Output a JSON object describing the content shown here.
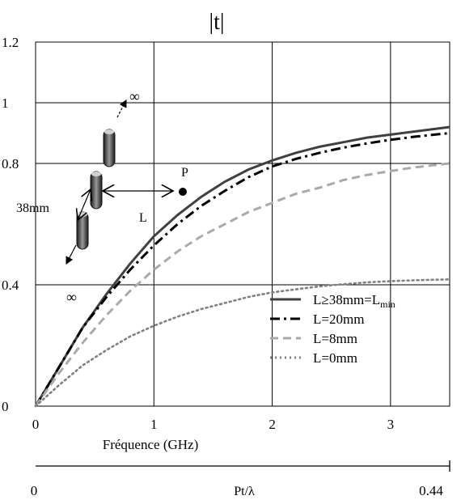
{
  "chart_data": {
    "type": "line",
    "title": "|t|",
    "xlabel": "Fréquence (GHz)",
    "ylabel": "",
    "xlim": [
      0,
      3.5
    ],
    "ylim": [
      0,
      1.2
    ],
    "x_ticks": [
      "0",
      "1",
      "2",
      "3"
    ],
    "y_ticks": [
      "0",
      "0.4",
      "0.8",
      "1",
      "1.2"
    ],
    "grid": true,
    "legend_position": "bottom-right",
    "series": [
      {
        "name": "L≥38mm=L",
        "name_sub": "min",
        "color": "#404040",
        "style": "solid",
        "x": [
          0,
          0.2,
          0.4,
          0.6,
          0.8,
          1.0,
          1.2,
          1.4,
          1.6,
          1.8,
          2.0,
          2.2,
          2.4,
          2.6,
          2.8,
          3.0,
          3.2,
          3.5
        ],
        "y": [
          0,
          0.13,
          0.26,
          0.37,
          0.47,
          0.56,
          0.63,
          0.69,
          0.74,
          0.78,
          0.81,
          0.835,
          0.855,
          0.87,
          0.885,
          0.895,
          0.905,
          0.92
        ]
      },
      {
        "name": "L=20mm",
        "color": "#000000",
        "style": "dashdot",
        "x": [
          0,
          0.2,
          0.4,
          0.6,
          0.8,
          1.0,
          1.2,
          1.4,
          1.6,
          1.8,
          2.0,
          2.2,
          2.4,
          2.6,
          2.8,
          3.0,
          3.2,
          3.5
        ],
        "y": [
          0,
          0.13,
          0.26,
          0.36,
          0.45,
          0.53,
          0.6,
          0.66,
          0.71,
          0.755,
          0.79,
          0.815,
          0.835,
          0.852,
          0.866,
          0.878,
          0.888,
          0.9
        ]
      },
      {
        "name": "L=8mm",
        "color": "#aaaaaa",
        "style": "dashed",
        "x": [
          0,
          0.2,
          0.4,
          0.6,
          0.8,
          1.0,
          1.2,
          1.4,
          1.6,
          1.8,
          2.0,
          2.2,
          2.4,
          2.6,
          2.8,
          3.0,
          3.2,
          3.5
        ],
        "y": [
          0,
          0.11,
          0.21,
          0.3,
          0.38,
          0.45,
          0.51,
          0.56,
          0.6,
          0.64,
          0.67,
          0.7,
          0.72,
          0.745,
          0.762,
          0.775,
          0.787,
          0.8
        ]
      },
      {
        "name": "L=0mm",
        "color": "#808080",
        "style": "dotted",
        "x": [
          0,
          0.2,
          0.4,
          0.6,
          0.8,
          1.0,
          1.2,
          1.4,
          1.6,
          1.8,
          2.0,
          2.2,
          2.4,
          2.6,
          2.8,
          3.0,
          3.2,
          3.5
        ],
        "y": [
          0,
          0.07,
          0.135,
          0.185,
          0.23,
          0.265,
          0.295,
          0.32,
          0.34,
          0.36,
          0.375,
          0.385,
          0.395,
          0.402,
          0.408,
          0.412,
          0.415,
          0.418
        ]
      }
    ],
    "secondary_axis": {
      "label": "Pt/λ",
      "start_label": "0",
      "end_label": "0.44"
    },
    "inset": {
      "length_label": "38mm",
      "l_label": "L",
      "point_label": "P",
      "infinity_label": "∞"
    }
  }
}
